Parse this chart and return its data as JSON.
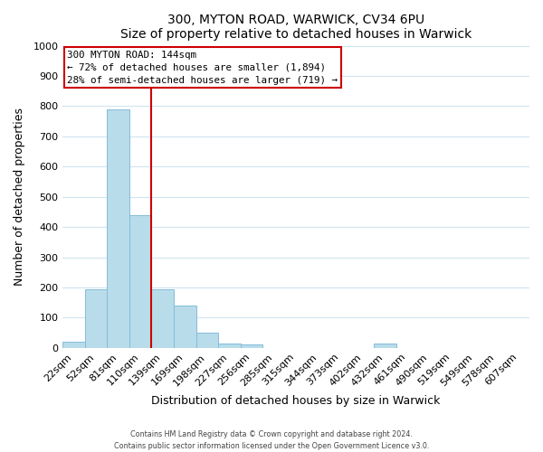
{
  "title1": "300, MYTON ROAD, WARWICK, CV34 6PU",
  "title2": "Size of property relative to detached houses in Warwick",
  "xlabel": "Distribution of detached houses by size in Warwick",
  "ylabel": "Number of detached properties",
  "bar_labels": [
    "22sqm",
    "52sqm",
    "81sqm",
    "110sqm",
    "139sqm",
    "169sqm",
    "198sqm",
    "227sqm",
    "256sqm",
    "285sqm",
    "315sqm",
    "344sqm",
    "373sqm",
    "402sqm",
    "432sqm",
    "461sqm",
    "490sqm",
    "519sqm",
    "549sqm",
    "578sqm",
    "607sqm"
  ],
  "bar_values": [
    20,
    195,
    790,
    440,
    195,
    140,
    50,
    15,
    10,
    0,
    0,
    0,
    0,
    0,
    15,
    0,
    0,
    0,
    0,
    0,
    0
  ],
  "bar_color": "#b8dcea",
  "bar_edge_color": "#85bcda",
  "vline_color": "#cc0000",
  "annotation_title": "300 MYTON ROAD: 144sqm",
  "annotation_line1": "← 72% of detached houses are smaller (1,894)",
  "annotation_line2": "28% of semi-detached houses are larger (719) →",
  "annotation_box_color": "#ffffff",
  "annotation_box_edge": "#cc0000",
  "grid_color": "#d0e4f0",
  "ylim": [
    0,
    1000
  ],
  "yticks": [
    0,
    100,
    200,
    300,
    400,
    500,
    600,
    700,
    800,
    900,
    1000
  ],
  "footer1": "Contains HM Land Registry data © Crown copyright and database right 2024.",
  "footer2": "Contains public sector information licensed under the Open Government Licence v3.0."
}
